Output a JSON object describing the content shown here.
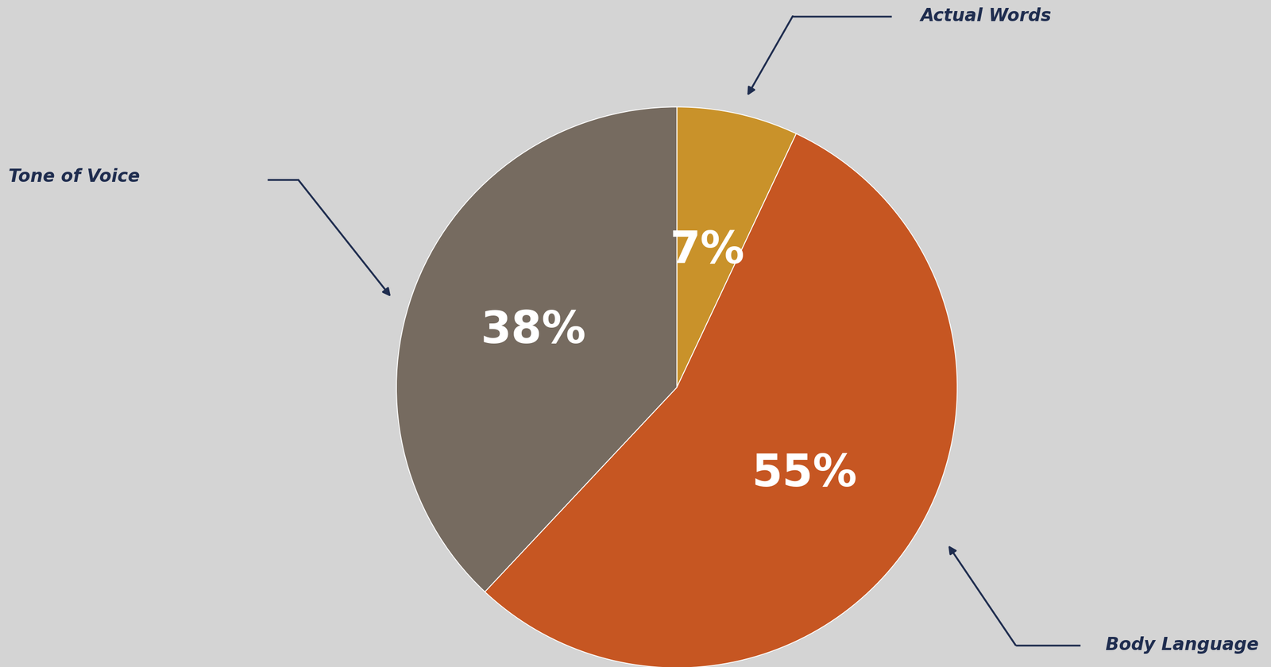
{
  "chart_data": {
    "type": "pie",
    "categories": [
      "Actual Words",
      "Body Language",
      "Tone of Voice"
    ],
    "values": [
      7,
      55,
      38
    ],
    "value_labels": [
      "7%",
      "55%",
      "38%"
    ],
    "colors": [
      "#c9922a",
      "#c65622",
      "#766b60"
    ],
    "data_labels": true
  }
}
